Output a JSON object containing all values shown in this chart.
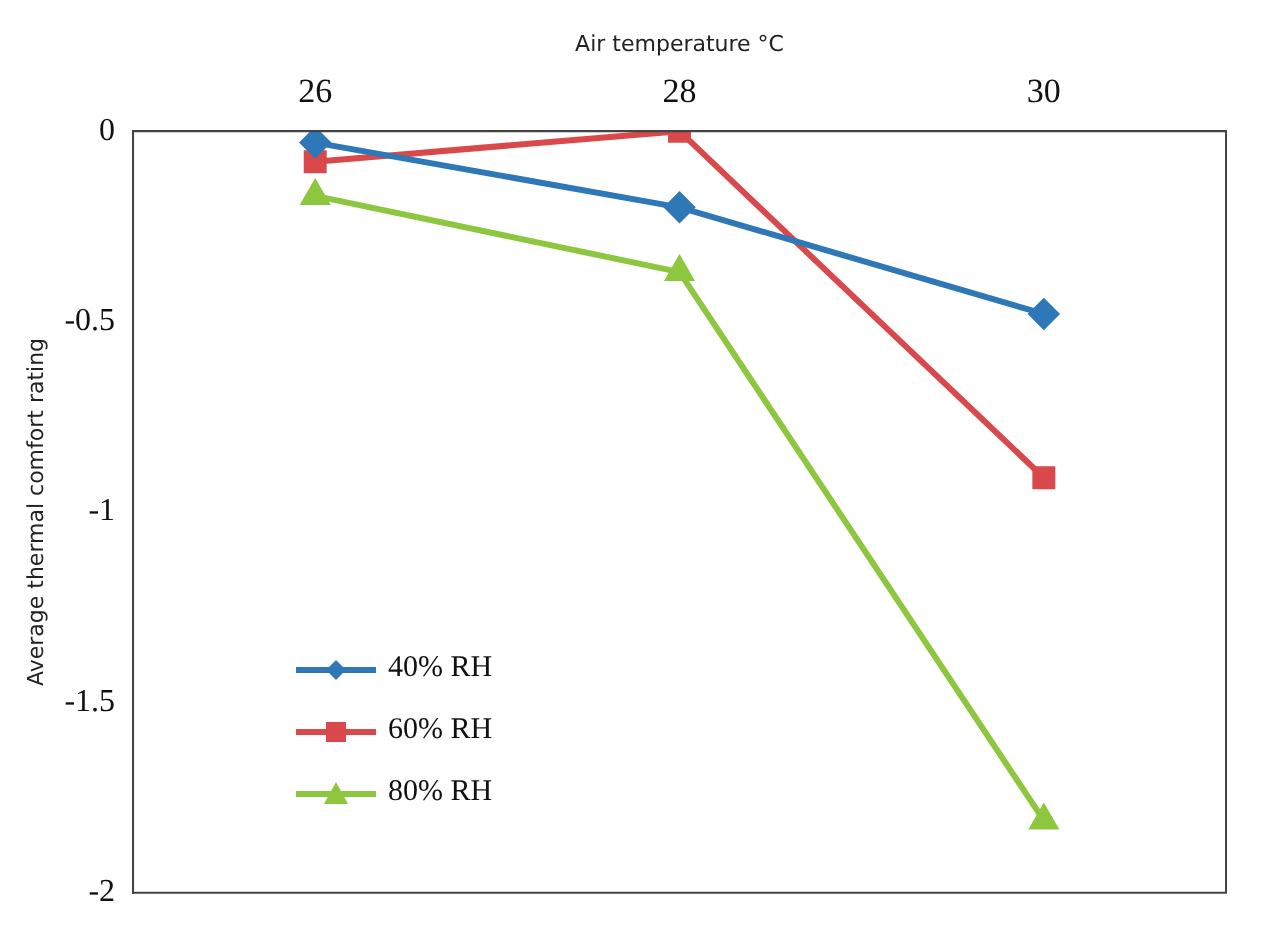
{
  "chart_data": {
    "type": "line",
    "xlabel": "Air temperature °C",
    "ylabel": "Average thermal comfort rating",
    "categories": [
      "26",
      "28",
      "30"
    ],
    "series": [
      {
        "name": "40% RH",
        "color": "#2e78b7",
        "marker": "diamond",
        "values": [
          -0.03,
          -0.2,
          -0.48
        ]
      },
      {
        "name": "60% RH",
        "color": "#d9494b",
        "marker": "square",
        "values": [
          -0.08,
          0,
          -0.91
        ]
      },
      {
        "name": "80% RH",
        "color": "#8dc63f",
        "marker": "triangle",
        "values": [
          -0.17,
          -0.37,
          -1.81
        ]
      }
    ],
    "ylim": [
      -2,
      0
    ],
    "yticks": [
      -2,
      -1.5,
      -1,
      -0.5,
      0
    ],
    "grid": false,
    "legend": "bottom left"
  }
}
